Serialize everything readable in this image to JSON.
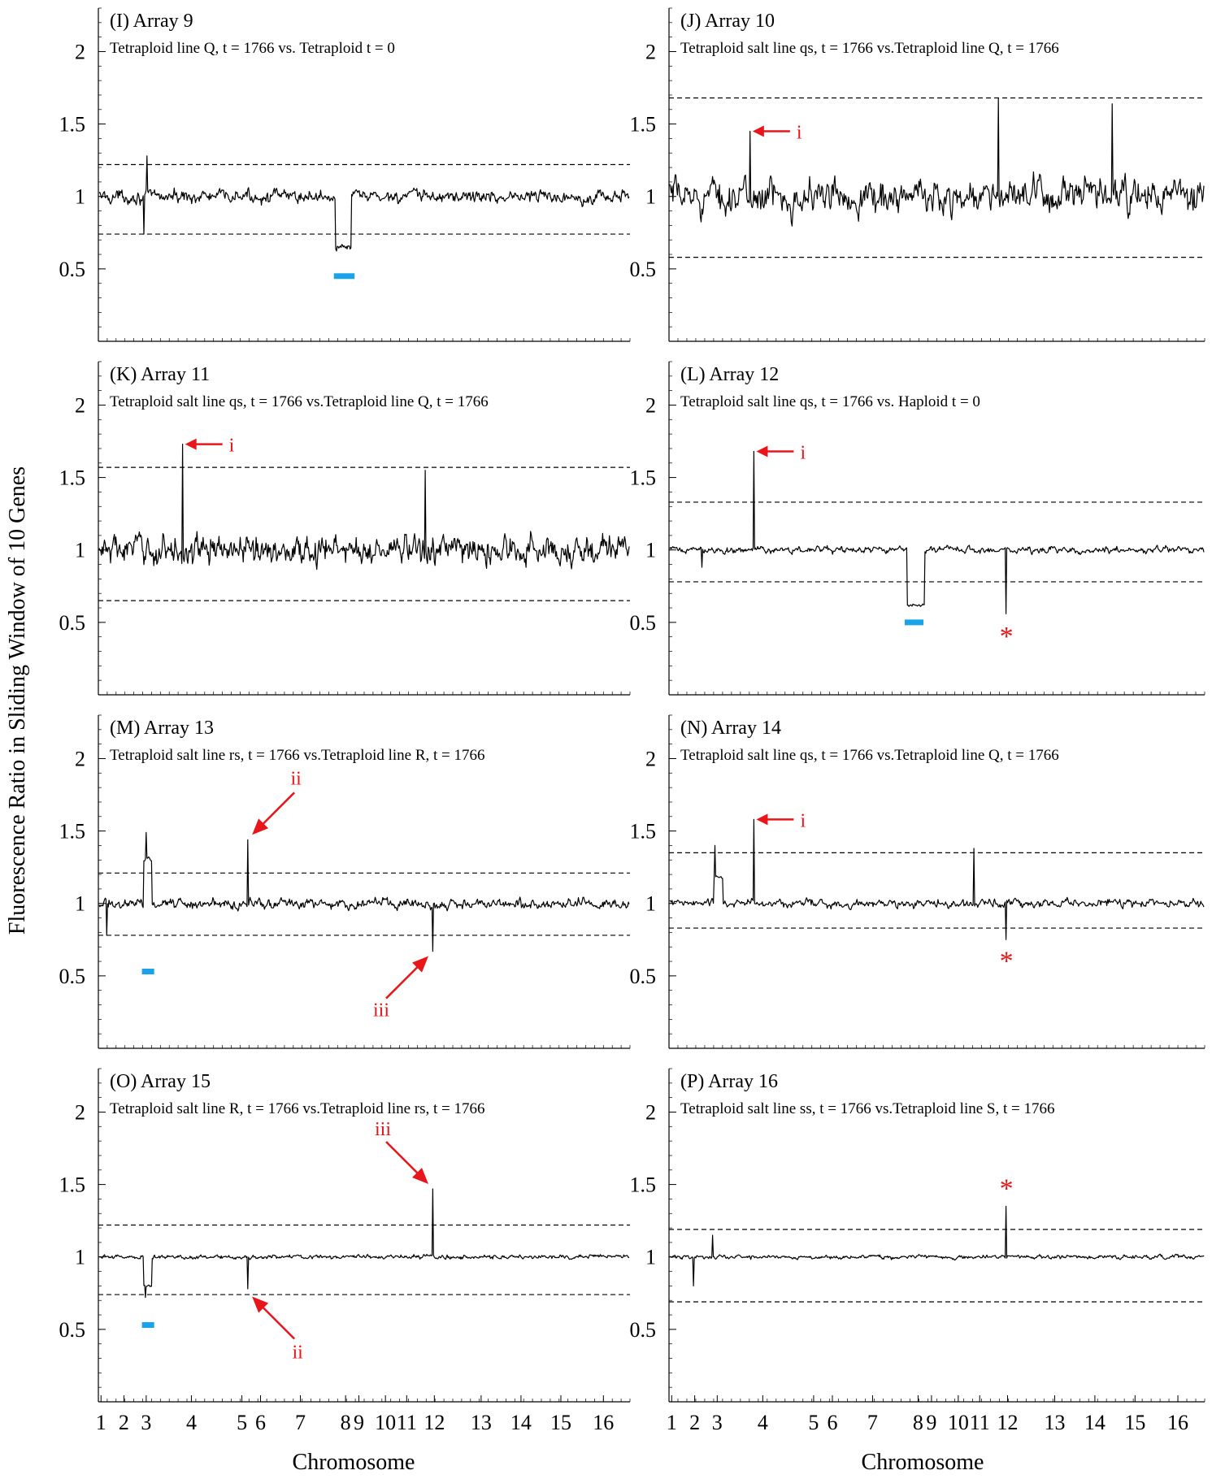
{
  "chart_data": [
    {
      "type": "line",
      "title": "(I) Array 9",
      "subtitle": "Tetraploid line Q, t = 1766 vs. Tetraploid t = 0",
      "ylim": [
        0,
        2.3
      ],
      "yticks": [
        "0.5",
        "1",
        "1.5",
        "2"
      ],
      "thresholds": [
        1.22,
        0.74
      ],
      "baseline": 1.0,
      "noise": 0.08,
      "features": [
        {
          "kind": "spike",
          "x": 0.09,
          "value": 1.28
        },
        {
          "kind": "dip",
          "x": 0.085,
          "value": 0.74
        },
        {
          "kind": "segment",
          "from": 0.447,
          "to": 0.475,
          "value": 0.65
        }
      ],
      "annotations": [
        {
          "kind": "bar",
          "from": 0.443,
          "to": 0.482,
          "value": 0.45
        }
      ]
    },
    {
      "type": "line",
      "title": "(J) Array 10",
      "subtitle": "Tetraploid salt line qs, t = 1766 vs.Tetraploid line Q, t = 1766",
      "ylim": [
        0,
        2.3
      ],
      "yticks": [
        "0.5",
        "1",
        "1.5",
        "2"
      ],
      "thresholds": [
        1.68,
        0.58
      ],
      "baseline": 1.0,
      "noise": 0.2,
      "features": [
        {
          "kind": "spike",
          "x": 0.15,
          "value": 1.45
        },
        {
          "kind": "spike",
          "x": 0.615,
          "value": 1.68
        },
        {
          "kind": "spike",
          "x": 0.828,
          "value": 1.64
        }
      ],
      "annotations": [
        {
          "kind": "arrow",
          "label": "i",
          "x": 0.15,
          "value": 1.45,
          "direction": "left"
        }
      ]
    },
    {
      "type": "line",
      "title": "(K) Array 11",
      "subtitle": "Tetraploid salt line qs, t = 1766 vs.Tetraploid line Q, t = 1766",
      "ylim": [
        0,
        2.3
      ],
      "yticks": [
        "0.5",
        "1",
        "1.5",
        "2"
      ],
      "thresholds": [
        1.57,
        0.65
      ],
      "baseline": 1.0,
      "noise": 0.18,
      "features": [
        {
          "kind": "spike",
          "x": 0.157,
          "value": 1.73
        },
        {
          "kind": "spike",
          "x": 0.615,
          "value": 1.55
        }
      ],
      "annotations": [
        {
          "kind": "arrow",
          "label": "i",
          "x": 0.157,
          "value": 1.73,
          "direction": "left"
        }
      ]
    },
    {
      "type": "line",
      "title": "(L) Array 12",
      "subtitle": "Tetraploid salt line qs, t = 1766 vs. Haploid t = 0",
      "ylim": [
        0,
        2.3
      ],
      "yticks": [
        "0.5",
        "1",
        "1.5",
        "2"
      ],
      "thresholds": [
        1.33,
        0.78
      ],
      "baseline": 1.0,
      "noise": 0.04,
      "features": [
        {
          "kind": "spike",
          "x": 0.157,
          "value": 1.68
        },
        {
          "kind": "dip",
          "x": 0.06,
          "value": 0.88
        },
        {
          "kind": "segment",
          "from": 0.445,
          "to": 0.477,
          "value": 0.62
        },
        {
          "kind": "dip",
          "x": 0.63,
          "value": 0.56
        }
      ],
      "annotations": [
        {
          "kind": "arrow",
          "label": "i",
          "x": 0.157,
          "value": 1.68,
          "direction": "left"
        },
        {
          "kind": "bar",
          "from": 0.44,
          "to": 0.475,
          "value": 0.5
        },
        {
          "kind": "star",
          "label": "*",
          "x": 0.63,
          "value": 0.42
        }
      ]
    },
    {
      "type": "line",
      "title": "(M) Array 13",
      "subtitle": "Tetraploid salt line rs, t = 1766 vs.Tetraploid line R, t = 1766",
      "ylim": [
        0,
        2.3
      ],
      "yticks": [
        "0.5",
        "1",
        "1.5",
        "2"
      ],
      "thresholds": [
        1.21,
        0.78
      ],
      "baseline": 1.0,
      "noise": 0.06,
      "features": [
        {
          "kind": "segment",
          "from": 0.085,
          "to": 0.1,
          "value": 1.3
        },
        {
          "kind": "spike",
          "x": 0.088,
          "value": 1.49
        },
        {
          "kind": "spike",
          "x": 0.28,
          "value": 1.44
        },
        {
          "kind": "dip",
          "x": 0.63,
          "value": 0.67
        },
        {
          "kind": "dip",
          "x": 0.015,
          "value": 0.78
        }
      ],
      "annotations": [
        {
          "kind": "bar",
          "from": 0.082,
          "to": 0.105,
          "value": 0.53
        },
        {
          "kind": "arrow",
          "label": "ii",
          "x": 0.28,
          "value": 1.44,
          "direction": "upright"
        },
        {
          "kind": "arrow",
          "label": "iii",
          "x": 0.63,
          "value": 0.67,
          "direction": "downleft"
        }
      ]
    },
    {
      "type": "line",
      "title": "(N) Array 14",
      "subtitle": "Tetraploid salt line qs, t = 1766 vs.Tetraploid line Q, t = 1766",
      "ylim": [
        0,
        2.3
      ],
      "yticks": [
        "0.5",
        "1",
        "1.5",
        "2"
      ],
      "thresholds": [
        1.35,
        0.83
      ],
      "baseline": 1.0,
      "noise": 0.05,
      "features": [
        {
          "kind": "segment",
          "from": 0.083,
          "to": 0.1,
          "value": 1.18
        },
        {
          "kind": "spike",
          "x": 0.085,
          "value": 1.4
        },
        {
          "kind": "spike",
          "x": 0.157,
          "value": 1.58
        },
        {
          "kind": "spike",
          "x": 0.57,
          "value": 1.38
        },
        {
          "kind": "dip",
          "x": 0.63,
          "value": 0.75
        }
      ],
      "annotations": [
        {
          "kind": "arrow",
          "label": "i",
          "x": 0.157,
          "value": 1.58,
          "direction": "left"
        },
        {
          "kind": "star",
          "label": "*",
          "x": 0.63,
          "value": 0.62
        }
      ]
    },
    {
      "type": "line",
      "title": "(O) Array 15",
      "subtitle": "Tetraploid salt line R, t = 1766 vs.Tetraploid line rs, t = 1766",
      "ylim": [
        0,
        2.3
      ],
      "yticks": [
        "0.5",
        "1",
        "1.5",
        "2"
      ],
      "thresholds": [
        1.22,
        0.74
      ],
      "baseline": 1.0,
      "noise": 0.025,
      "features": [
        {
          "kind": "segment",
          "from": 0.085,
          "to": 0.1,
          "value": 0.8
        },
        {
          "kind": "dip",
          "x": 0.087,
          "value": 0.72
        },
        {
          "kind": "dip",
          "x": 0.28,
          "value": 0.78
        },
        {
          "kind": "spike",
          "x": 0.63,
          "value": 1.47
        }
      ],
      "annotations": [
        {
          "kind": "bar",
          "from": 0.082,
          "to": 0.105,
          "value": 0.53
        },
        {
          "kind": "arrow",
          "label": "iii",
          "x": 0.63,
          "value": 1.47,
          "direction": "upleft"
        },
        {
          "kind": "arrow",
          "label": "ii",
          "x": 0.28,
          "value": 0.76,
          "direction": "downright"
        }
      ]
    },
    {
      "type": "line",
      "title": "(P) Array 16",
      "subtitle": "Tetraploid salt line ss, t = 1766 vs.Tetraploid line S, t = 1766",
      "ylim": [
        0,
        2.3
      ],
      "yticks": [
        "0.5",
        "1",
        "1.5",
        "2"
      ],
      "thresholds": [
        1.19,
        0.69
      ],
      "baseline": 1.0,
      "noise": 0.025,
      "features": [
        {
          "kind": "spike",
          "x": 0.08,
          "value": 1.15
        },
        {
          "kind": "dip",
          "x": 0.045,
          "value": 0.8
        },
        {
          "kind": "spike",
          "x": 0.63,
          "value": 1.35
        }
      ],
      "annotations": [
        {
          "kind": "star",
          "label": "*",
          "x": 0.63,
          "value": 1.49
        }
      ]
    }
  ],
  "x_axis": {
    "label": "Chromosome",
    "ticks": [
      "1",
      "2",
      "3",
      "4",
      "5",
      "6",
      "7",
      "8",
      "9",
      "10",
      "11",
      "12",
      "13",
      "14",
      "15",
      "16"
    ],
    "tick_positions": [
      0.005,
      0.048,
      0.09,
      0.175,
      0.27,
      0.305,
      0.38,
      0.465,
      0.49,
      0.54,
      0.58,
      0.632,
      0.72,
      0.795,
      0.87,
      0.95
    ]
  },
  "y_axis": {
    "label": "Fluorescence Ratio in Sliding Window of 10 Genes"
  },
  "colors": {
    "trace": "#000000",
    "annotation": "#e8151b",
    "segment_bar": "#1aa3e8"
  }
}
